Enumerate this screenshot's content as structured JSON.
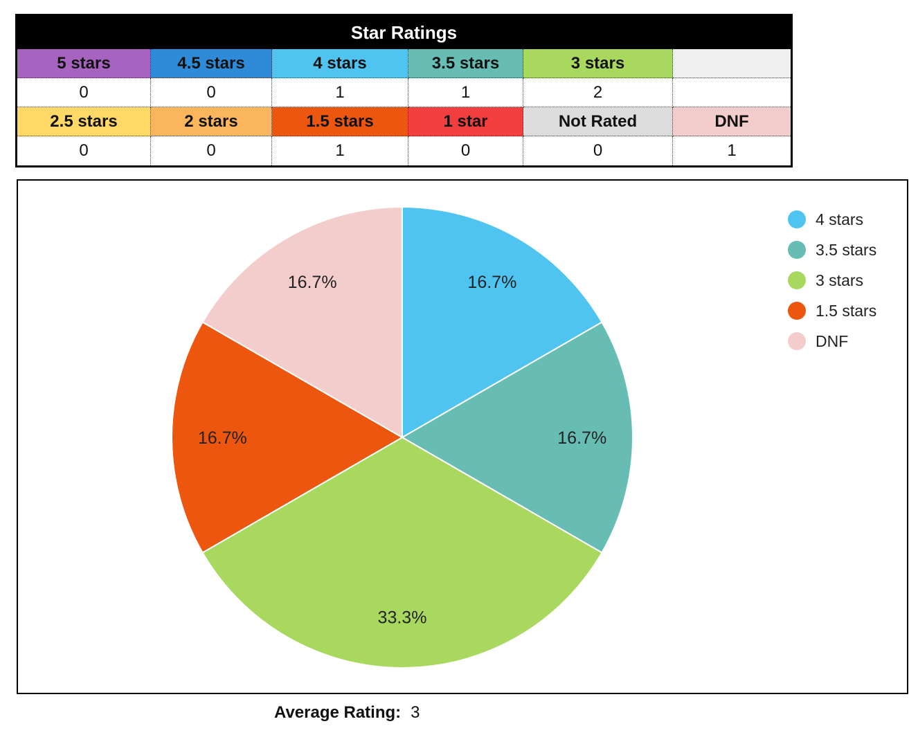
{
  "ratings_table": {
    "title": "Star Ratings",
    "rows": [
      {
        "headers": [
          {
            "label": "5 stars",
            "color": "#a663bf"
          },
          {
            "label": "4.5 stars",
            "color": "#2d8bd9"
          },
          {
            "label": "4 stars",
            "color": "#4fc4f1"
          },
          {
            "label": "3.5 stars",
            "color": "#67bdb4"
          },
          {
            "label": "3 stars",
            "color": "#a9d85e"
          },
          {
            "label": "",
            "color": "#efefef"
          }
        ],
        "values": [
          "0",
          "0",
          "1",
          "1",
          "2",
          ""
        ]
      },
      {
        "headers": [
          {
            "label": "2.5 stars",
            "color": "#ffd866"
          },
          {
            "label": "2 stars",
            "color": "#fbb55d"
          },
          {
            "label": "1.5 stars",
            "color": "#ec560f"
          },
          {
            "label": "1 star",
            "color": "#f23e3e"
          },
          {
            "label": "Not Rated",
            "color": "#dcdcdc"
          },
          {
            "label": "DNF",
            "color": "#f3cccc"
          }
        ],
        "values": [
          "0",
          "0",
          "1",
          "0",
          "0",
          "1"
        ]
      }
    ]
  },
  "chart_data": {
    "type": "pie",
    "categories": [
      "4 stars",
      "3.5 stars",
      "3 stars",
      "1.5 stars",
      "DNF"
    ],
    "values": [
      1,
      1,
      2,
      1,
      1
    ],
    "labels": [
      "16.7%",
      "16.7%",
      "33.3%",
      "16.7%",
      "16.7%"
    ],
    "colors": [
      "#4fc4f1",
      "#67bdb4",
      "#a9d85e",
      "#ec560f",
      "#f3cccc"
    ],
    "legend": "right"
  },
  "average": {
    "label": "Average Rating:",
    "value": "3"
  }
}
